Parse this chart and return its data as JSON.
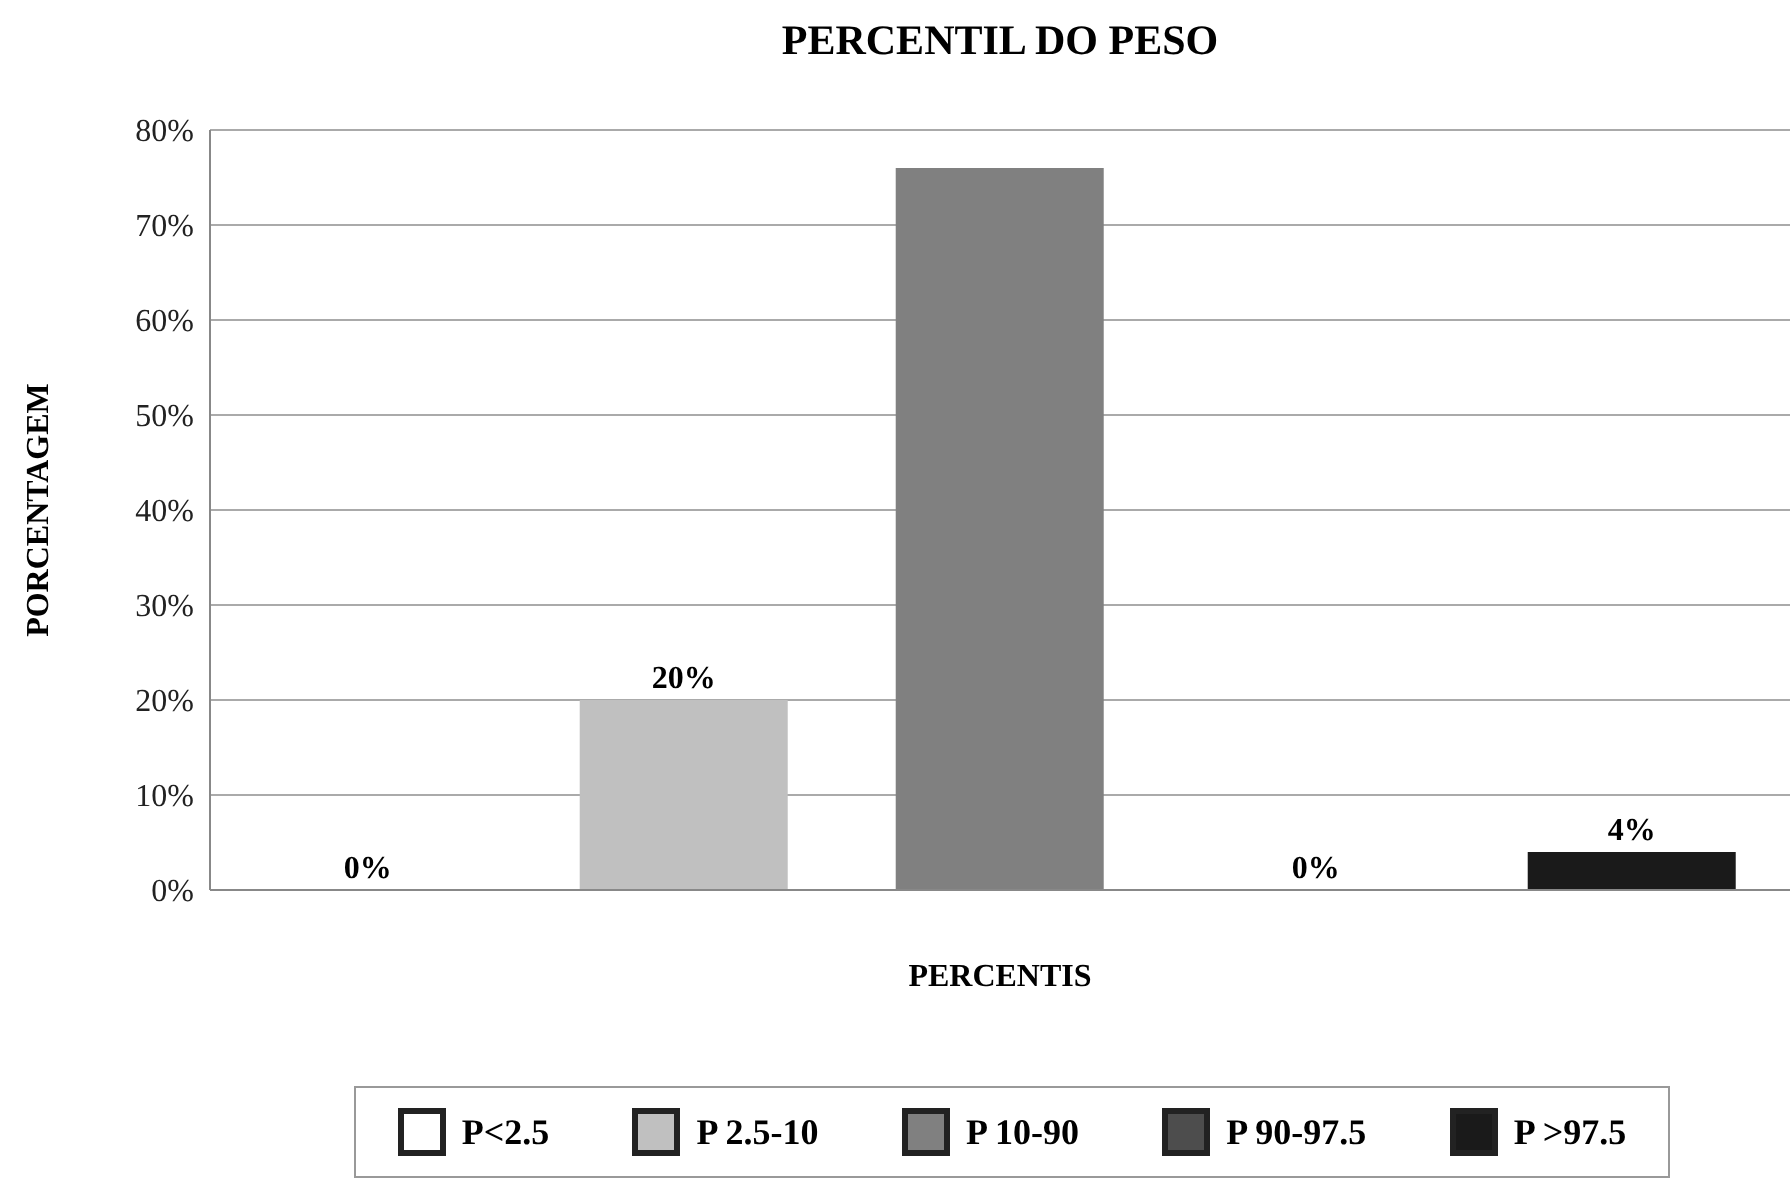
{
  "chart_data": {
    "type": "bar",
    "title": "PERCENTIL DO PESO",
    "xlabel": "PERCENTIS",
    "ylabel": "PORCENTAGEM",
    "categories": [
      null,
      null,
      null,
      null,
      null
    ],
    "series": [
      {
        "name": "P<2.5",
        "color": "#ffffff",
        "values": [
          0,
          null,
          null,
          null,
          null
        ],
        "value_labels": [
          "0%",
          null,
          null,
          null,
          null
        ]
      },
      {
        "name": "P 2.5-10",
        "color": "#c0c0c0",
        "values": [
          null,
          20,
          null,
          null,
          null
        ],
        "value_labels": [
          null,
          "20%",
          null,
          null,
          null
        ]
      },
      {
        "name": "P 10-90",
        "color": "#808080",
        "values": [
          null,
          null,
          76,
          null,
          null
        ],
        "value_labels": [
          null,
          null,
          null,
          null,
          null
        ]
      },
      {
        "name": "P 90-97.5",
        "color": "#4d4d4d",
        "values": [
          null,
          null,
          null,
          0,
          null
        ],
        "value_labels": [
          null,
          null,
          null,
          "0%",
          null
        ]
      },
      {
        "name": "P >97.5",
        "color": "#1a1a1a",
        "values": [
          null,
          null,
          null,
          null,
          4
        ],
        "value_labels": [
          null,
          null,
          null,
          null,
          "4%"
        ]
      }
    ],
    "ylim": [
      0,
      80
    ],
    "yticks": [
      {
        "value": 0,
        "label": "0%"
      },
      {
        "value": 10,
        "label": "10%"
      },
      {
        "value": 20,
        "label": "20%"
      },
      {
        "value": 30,
        "label": "30%"
      },
      {
        "value": 40,
        "label": "40%"
      },
      {
        "value": 50,
        "label": "50%"
      },
      {
        "value": 60,
        "label": "60%"
      },
      {
        "value": 70,
        "label": "70%"
      },
      {
        "value": 80,
        "label": "80%"
      }
    ],
    "grid": "y",
    "legend": "bottom"
  }
}
